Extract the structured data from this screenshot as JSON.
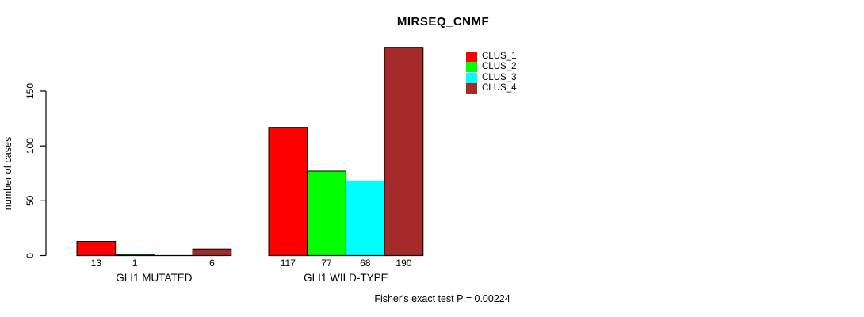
{
  "title": "MIRSEQ_CNMF",
  "footer": "Fisher's exact test P = 0.00224",
  "chart_data": {
    "type": "bar",
    "title": "MIRSEQ_CNMF",
    "ylabel": "number of cases",
    "xlabel": "",
    "groups": [
      "GLI1 MUTATED",
      "GLI1 WILD-TYPE"
    ],
    "series": [
      {
        "name": "CLUS_1",
        "color": "#ff0000",
        "values": [
          13,
          117
        ]
      },
      {
        "name": "CLUS_2",
        "color": "#00ff00",
        "values": [
          1,
          77
        ]
      },
      {
        "name": "CLUS_3",
        "color": "#00ffff",
        "values": [
          0,
          68
        ]
      },
      {
        "name": "CLUS_4",
        "color": "#a52a2a",
        "values": [
          6,
          190
        ]
      }
    ],
    "bar_labels": [
      [
        "13",
        "1",
        "",
        "6"
      ],
      [
        "117",
        "77",
        "68",
        "190"
      ]
    ],
    "yticks": [
      0,
      50,
      100,
      150
    ],
    "ylim": [
      0,
      150
    ],
    "grid": false,
    "legend_position": "top-right",
    "bar_border_color": "#000000",
    "annotation": "Fisher's exact test P = 0.00224"
  }
}
